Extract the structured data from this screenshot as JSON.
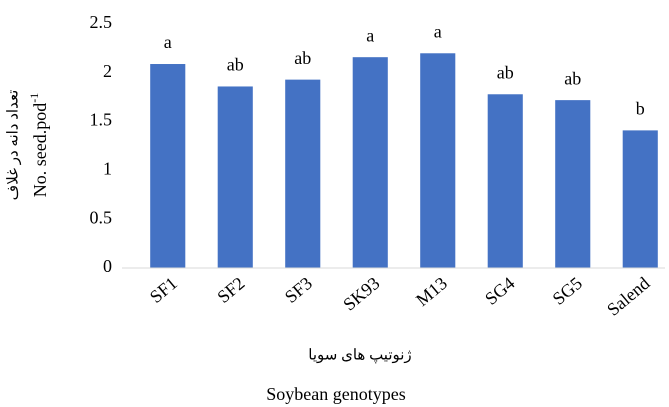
{
  "chart_data": {
    "type": "bar",
    "ylabel_fa": "تعداد دانه در غلاف",
    "ylabel": "No. seed.pod",
    "ylabel_superscript": "-1",
    "xlabel_fa": "ژنوتیپ های سویا",
    "xlabel": "Soybean genotypes",
    "categories": [
      "SF1",
      "SF2",
      "SF3",
      "SK93",
      "M13",
      "SG4",
      "SG5",
      "Salend"
    ],
    "values": [
      2.09,
      1.86,
      1.93,
      2.16,
      2.2,
      1.78,
      1.72,
      1.41
    ],
    "annotations": [
      "a",
      "ab",
      "ab",
      "a",
      "a",
      "ab",
      "ab",
      "b"
    ],
    "color": "#4472c4",
    "ylim": [
      0,
      2.5
    ],
    "yticks": [
      0,
      0.5,
      1,
      1.5,
      2,
      2.5
    ],
    "grid": false
  }
}
